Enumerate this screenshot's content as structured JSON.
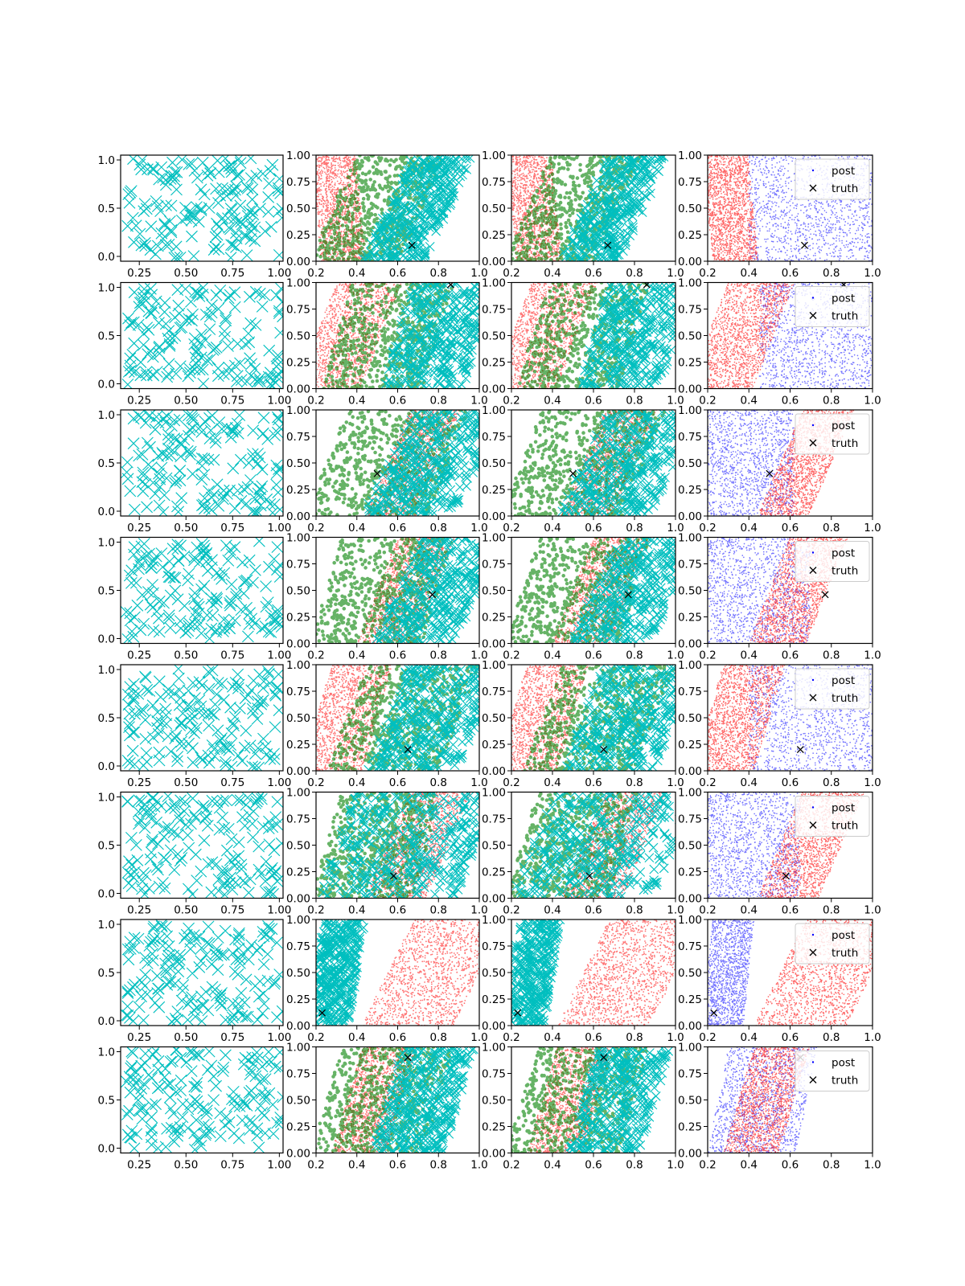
{
  "figure": {
    "rows": 8,
    "cols": 4,
    "background": "#ffffff"
  },
  "colors": {
    "prior": "#00bfbf",
    "cyan": "#00bfbf",
    "green": "#008000",
    "red": "#ff0000",
    "blue": "#0000ff",
    "truth": "#000000"
  },
  "legend": {
    "post_label": "post",
    "truth_label": "truth",
    "placement": "upper right"
  },
  "chart_data": {
    "type": "scatter",
    "axes": {
      "col1": {
        "xlim": [
          0.15,
          1.02
        ],
        "ylim": [
          -0.05,
          1.05
        ],
        "xticks": [
          "0.25",
          "0.50",
          "0.75",
          "1.00"
        ],
        "xtick_values": [
          0.25,
          0.5,
          0.75,
          1.0
        ],
        "yticks": [
          "0.0",
          "0.5",
          "1.0"
        ],
        "ytick_values": [
          0.0,
          0.5,
          1.0
        ]
      },
      "other": {
        "xlim": [
          0.2,
          1.0
        ],
        "ylim": [
          0.0,
          1.0
        ],
        "xticks": [
          "0.2",
          "0.4",
          "0.6",
          "0.8",
          "1.0"
        ],
        "xtick_values": [
          0.2,
          0.4,
          0.6,
          0.8,
          1.0
        ],
        "yticks": [
          "0.00",
          "0.25",
          "0.50",
          "0.75",
          "1.00"
        ],
        "ytick_values": [
          0.0,
          0.25,
          0.5,
          0.75,
          1.0
        ]
      }
    },
    "rows": [
      {
        "truth": [
          0.67,
          0.15
        ],
        "red": [
          0.2,
          0.42,
          -0.05
        ],
        "blue": [
          0.4,
          1.0,
          0.0
        ],
        "green": [
          0.28,
          0.72,
          0.22
        ],
        "cyan": [
          0.55,
          0.85,
          0.25
        ],
        "legend": true
      },
      {
        "truth": [
          0.86,
          0.98
        ],
        "red": [
          0.2,
          0.52,
          0.2
        ],
        "blue": [
          0.45,
          1.0,
          0.0
        ],
        "green": [
          0.3,
          0.8,
          0.15
        ],
        "cyan": [
          0.6,
          1.0,
          0.15
        ],
        "legend": true
      },
      {
        "truth": [
          0.5,
          0.4
        ],
        "red": [
          0.55,
          0.8,
          0.22
        ],
        "blue": [
          0.2,
          0.62,
          0.0
        ],
        "green": [
          0.25,
          0.85,
          0.2
        ],
        "cyan": [
          0.55,
          1.0,
          0.25
        ],
        "legend": true
      },
      {
        "truth": [
          0.77,
          0.46
        ],
        "red": [
          0.5,
          0.78,
          0.2
        ],
        "blue": [
          0.2,
          0.7,
          0.0
        ],
        "green": [
          0.25,
          0.8,
          0.15
        ],
        "cyan": [
          0.6,
          1.0,
          0.25
        ],
        "legend": true
      },
      {
        "truth": [
          0.65,
          0.2
        ],
        "red": [
          0.2,
          0.5,
          0.15
        ],
        "blue": [
          0.4,
          1.0,
          0.0
        ],
        "green": [
          0.35,
          0.9,
          0.2
        ],
        "cyan": [
          0.55,
          1.0,
          0.2
        ],
        "legend": true
      },
      {
        "truth": [
          0.58,
          0.21
        ],
        "red": [
          0.55,
          0.85,
          0.22
        ],
        "blue": [
          0.2,
          0.65,
          0.0
        ],
        "green": [
          0.25,
          0.75,
          0.15
        ],
        "cyan": [
          0.3,
          1.0,
          0.2
        ],
        "legend": true
      },
      {
        "truth": [
          0.23,
          0.12
        ],
        "red": [
          0.55,
          1.0,
          0.25
        ],
        "blue": [
          0.2,
          0.4,
          0.05
        ],
        "green": null,
        "cyan": [
          0.2,
          0.4,
          0.08
        ],
        "legend": true
      },
      {
        "truth": [
          0.65,
          0.9
        ],
        "red": [
          0.35,
          0.62,
          0.15
        ],
        "blue": [
          0.25,
          0.68,
          0.1
        ],
        "green": [
          0.25,
          0.8,
          0.15
        ],
        "cyan": [
          0.55,
          0.9,
          0.15
        ],
        "legend": true
      }
    ]
  }
}
